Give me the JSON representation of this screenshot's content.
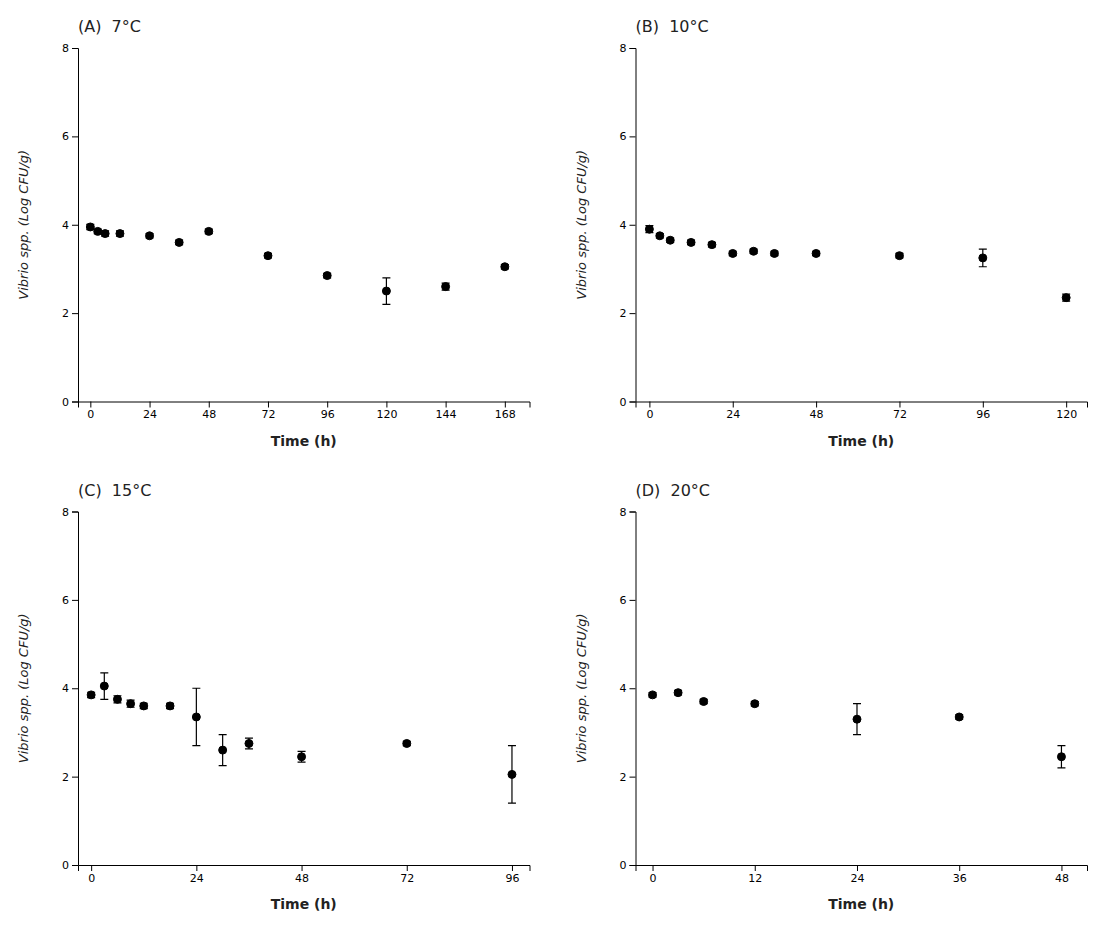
{
  "chart_data": [
    {
      "type": "scatter",
      "title": "(A)  7°C",
      "xlabel": "Time (h)",
      "ylabel": "Vibrio spp. (Log CFU/g)",
      "x": [
        0,
        3,
        6,
        12,
        24,
        36,
        48,
        72,
        96,
        120,
        144,
        168
      ],
      "values": [
        3.95,
        3.85,
        3.8,
        3.8,
        3.75,
        3.6,
        3.85,
        3.3,
        2.85,
        2.5,
        2.6,
        3.05
      ],
      "errors": [
        0.06,
        0.05,
        0.06,
        0.06,
        0.05,
        0.05,
        0.05,
        0.05,
        0.05,
        0.3,
        0.08,
        0.05
      ],
      "xlim": [
        -5,
        178
      ],
      "xticks": [
        0,
        24,
        48,
        72,
        96,
        120,
        144,
        168
      ],
      "ylim": [
        0,
        8
      ],
      "yticks": [
        0,
        2,
        4,
        6,
        8
      ],
      "color": "black",
      "marker": "circle",
      "grid": false
    },
    {
      "type": "scatter",
      "title": "(B)  10°C",
      "xlabel": "Time (h)",
      "ylabel": "Vibrio spp. (Log CFU/g)",
      "x": [
        0,
        3,
        6,
        12,
        18,
        24,
        30,
        36,
        48,
        72,
        96,
        120
      ],
      "values": [
        3.9,
        3.75,
        3.65,
        3.6,
        3.55,
        3.35,
        3.4,
        3.35,
        3.35,
        3.3,
        3.25,
        2.35
      ],
      "errors": [
        0.08,
        0.05,
        0.05,
        0.05,
        0.05,
        0.05,
        0.05,
        0.05,
        0.05,
        0.05,
        0.2,
        0.08
      ],
      "xlim": [
        -4,
        126
      ],
      "xticks": [
        0,
        24,
        48,
        72,
        96,
        120
      ],
      "ylim": [
        0,
        8
      ],
      "yticks": [
        0,
        2,
        4,
        6,
        8
      ],
      "color": "black",
      "marker": "circle",
      "grid": false
    },
    {
      "type": "scatter",
      "title": "(C)  15°C",
      "xlabel": "Time (h)",
      "ylabel": "Vibrio spp. (Log CFU/g)",
      "x": [
        0,
        3,
        6,
        9,
        12,
        18,
        24,
        30,
        36,
        48,
        72,
        96
      ],
      "values": [
        3.85,
        4.05,
        3.75,
        3.65,
        3.6,
        3.6,
        3.35,
        2.6,
        2.75,
        2.45,
        2.75,
        2.05
      ],
      "errors": [
        0.06,
        0.3,
        0.08,
        0.08,
        0.06,
        0.06,
        0.65,
        0.35,
        0.12,
        0.12,
        0.05,
        0.65
      ],
      "xlim": [
        -3,
        100
      ],
      "xticks": [
        0,
        24,
        48,
        72,
        96
      ],
      "ylim": [
        0,
        8
      ],
      "yticks": [
        0,
        2,
        4,
        6,
        8
      ],
      "color": "black",
      "marker": "circle",
      "grid": false
    },
    {
      "type": "scatter",
      "title": "(D)  20°C",
      "xlabel": "Time (h)",
      "ylabel": "Vibrio spp. (Log CFU/g)",
      "x": [
        0,
        3,
        6,
        12,
        24,
        36,
        48
      ],
      "values": [
        3.85,
        3.9,
        3.7,
        3.65,
        3.3,
        3.35,
        2.45
      ],
      "errors": [
        0.05,
        0.05,
        0.05,
        0.05,
        0.35,
        0.05,
        0.25
      ],
      "xlim": [
        -2,
        51
      ],
      "xticks": [
        0,
        12,
        24,
        36,
        48
      ],
      "ylim": [
        0,
        8
      ],
      "yticks": [
        0,
        2,
        4,
        6,
        8
      ],
      "color": "black",
      "marker": "circle",
      "grid": false
    }
  ]
}
